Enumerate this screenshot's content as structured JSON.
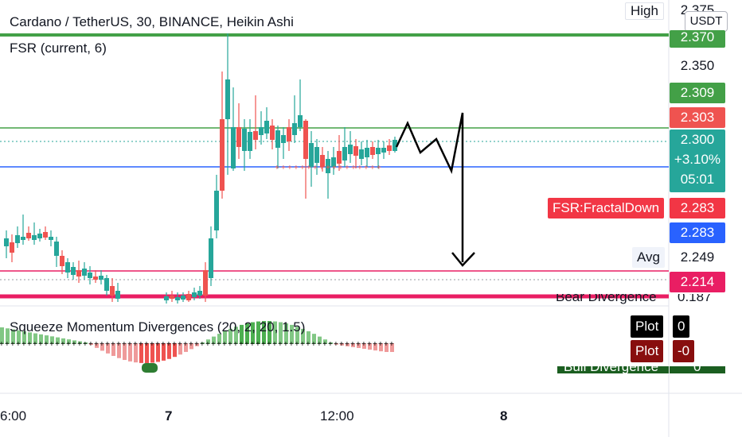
{
  "chart_title": "Cardano / TetherUS, 30, BINANCE, Heikin Ashi",
  "indicator_main": "FSR (current, 6)",
  "indicator_sub": "Squeeze Momentum Divergences (20, 2, 20, 1.5)",
  "currency_button": "USDT",
  "price_axis": {
    "high_label": "High",
    "high_value": "2.375",
    "green_line_value": "2.370",
    "tick_2350": "2.350",
    "level_2309": "2.309",
    "level_2303": "2.303",
    "current_price": "2.300",
    "change_pct": "+3.10%",
    "countdown": "05:01",
    "fractal_label": "FSR:FractalDown",
    "fractal_value": "2.283",
    "blue_value": "2.283",
    "avg_label": "Avg",
    "avg_value": "2.249",
    "pink_value": "2.214",
    "bear_label": "Bear Divergence",
    "bear_value": "0.187"
  },
  "sub_pane": {
    "plot_label_1": "Plot",
    "plot_value_1": "0",
    "plot_label_2": "Plot",
    "plot_value_2": "-0",
    "bull_label": "Bull Divergence",
    "bull_value": "0"
  },
  "time_axis": [
    "6:00",
    "7",
    "12:00",
    "8"
  ],
  "colors": {
    "bull": "#26a69a",
    "bear": "#ef5350",
    "green_line": "#43a047",
    "blue_line": "#2962ff",
    "pink_line": "#e91e63",
    "red_tag": "#f23645"
  }
}
